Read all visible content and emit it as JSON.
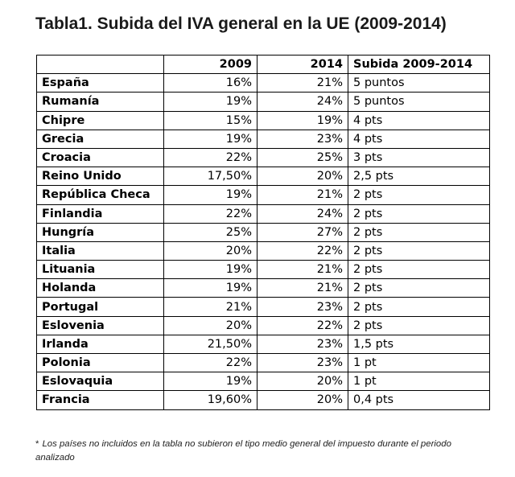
{
  "title": "Tabla1. Subida del IVA general en la UE (2009-2014)",
  "table": {
    "headers": [
      "",
      "2009",
      "2014",
      "Subida 2009-2014"
    ],
    "rows": [
      {
        "country": "España",
        "y2009": "16%",
        "y2014": "21%",
        "increase": "5 puntos"
      },
      {
        "country": "Rumanía",
        "y2009": "19%",
        "y2014": "24%",
        "increase": "5 puntos"
      },
      {
        "country": "Chipre",
        "y2009": "15%",
        "y2014": "19%",
        "increase": "4 pts"
      },
      {
        "country": "Grecia",
        "y2009": "19%",
        "y2014": "23%",
        "increase": "4 pts"
      },
      {
        "country": "Croacia",
        "y2009": "22%",
        "y2014": "25%",
        "increase": "3 pts"
      },
      {
        "country": "Reino Unido",
        "y2009": "17,50%",
        "y2014": "20%",
        "increase": "2,5 pts"
      },
      {
        "country": "República Checa",
        "y2009": "19%",
        "y2014": "21%",
        "increase": "2 pts"
      },
      {
        "country": "Finlandia",
        "y2009": "22%",
        "y2014": "24%",
        "increase": "2 pts"
      },
      {
        "country": "Hungría",
        "y2009": "25%",
        "y2014": "27%",
        "increase": "2 pts"
      },
      {
        "country": "Italia",
        "y2009": "20%",
        "y2014": "22%",
        "increase": "2 pts"
      },
      {
        "country": "Lituania",
        "y2009": "19%",
        "y2014": "21%",
        "increase": "2 pts"
      },
      {
        "country": "Holanda",
        "y2009": "19%",
        "y2014": "21%",
        "increase": "2 pts"
      },
      {
        "country": "Portugal",
        "y2009": "21%",
        "y2014": "23%",
        "increase": "2 pts"
      },
      {
        "country": "Eslovenia",
        "y2009": "20%",
        "y2014": "22%",
        "increase": "2 pts"
      },
      {
        "country": "Irlanda",
        "y2009": "21,50%",
        "y2014": "23%",
        "increase": "1,5 pts"
      },
      {
        "country": "Polonia",
        "y2009": "22%",
        "y2014": "23%",
        "increase": "1 pt"
      },
      {
        "country": "Eslovaquia",
        "y2009": "19%",
        "y2014": "20%",
        "increase": "1 pt"
      },
      {
        "country": "Francia",
        "y2009": "19,60%",
        "y2014": "20%",
        "increase": "0,4 pts"
      }
    ]
  },
  "footnote": {
    "marker": "*",
    "text": "Los países no incluidos en la tabla no subieron el tipo medio general del impuesto durante el periodo analizado"
  }
}
